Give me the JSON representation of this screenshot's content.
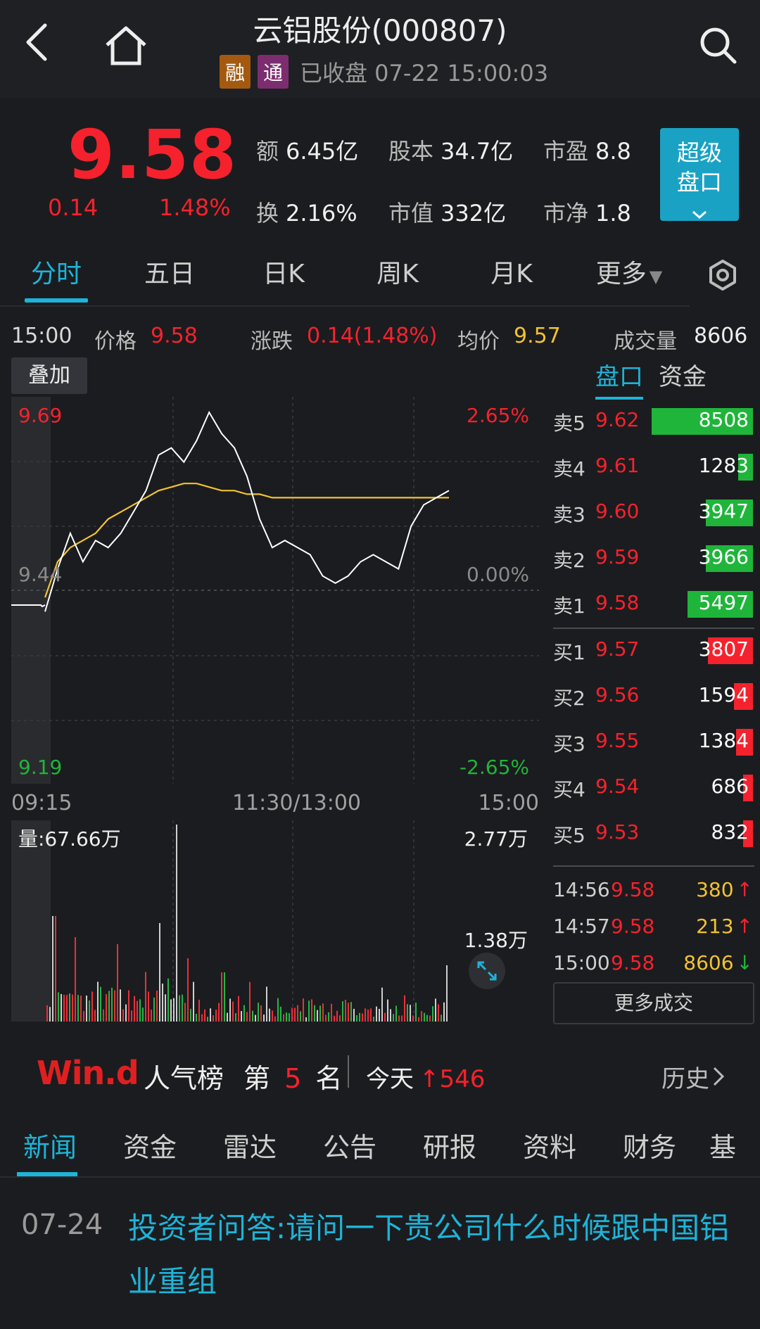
{
  "header": {
    "title": "云铝股份(000807)",
    "tag1": "融",
    "tag2": "通",
    "status": "已收盘 07-22 15:00:03"
  },
  "quote": {
    "price": "9.58",
    "change": "0.14",
    "change_pct": "1.48%",
    "stats": [
      {
        "k": "额",
        "v": "6.45亿"
      },
      {
        "k": "股本",
        "v": "34.7亿"
      },
      {
        "k": "市盈",
        "v": "8.8"
      },
      {
        "k": "换",
        "v": "2.16%"
      },
      {
        "k": "市值",
        "v": "332亿"
      },
      {
        "k": "市净",
        "v": "1.8"
      }
    ],
    "super_button": [
      "超级",
      "盘口"
    ]
  },
  "chart_tabs": [
    "分时",
    "五日",
    "日K",
    "周K",
    "月K",
    "更多"
  ],
  "info_line": {
    "time": "15:00",
    "price_label": "价格",
    "price": "9.58",
    "change_label": "涨跌",
    "change": "0.14(1.48%)",
    "avg_label": "均价",
    "avg": "9.57",
    "volume_label": "成交量",
    "volume": "8606"
  },
  "overlay_button": "叠加",
  "order_tabs": [
    "盘口",
    "资金"
  ],
  "price_chart": {
    "y_max": "9.69",
    "y_mid": "9.44",
    "y_min": "9.19",
    "pct_max": "2.65%",
    "pct_mid": "0.00%",
    "pct_min": "-2.65%",
    "x_labels": [
      "09:15",
      "11:30/13:00",
      "15:00"
    ]
  },
  "volume_chart": {
    "label": "量:67.66万",
    "max": "2.77万",
    "mid": "1.38万"
  },
  "chart_data": {
    "type": "line",
    "ylim": [
      9.19,
      9.69
    ],
    "series": [
      {
        "name": "价格",
        "values": [
          9.41,
          9.47,
          9.52,
          9.48,
          9.51,
          9.5,
          9.52,
          9.55,
          9.58,
          9.63,
          9.64,
          9.62,
          9.65,
          9.69,
          9.66,
          9.64,
          9.6,
          9.54,
          9.5,
          9.51,
          9.5,
          9.49,
          9.46,
          9.45,
          9.46,
          9.48,
          9.49,
          9.48,
          9.47,
          9.53,
          9.56,
          9.57,
          9.58
        ]
      },
      {
        "name": "均价",
        "values": [
          9.43,
          9.48,
          9.5,
          9.51,
          9.52,
          9.54,
          9.55,
          9.56,
          9.57,
          9.58,
          9.585,
          9.59,
          9.59,
          9.585,
          9.58,
          9.58,
          9.575,
          9.575,
          9.57,
          9.57,
          9.57,
          9.57,
          9.57,
          9.57,
          9.57,
          9.57,
          9.57,
          9.57,
          9.57,
          9.57,
          9.57,
          9.57,
          9.57
        ]
      }
    ]
  },
  "order_book": {
    "asks": [
      {
        "label": "卖5",
        "price": "9.62",
        "vol": "8508",
        "ratio": 0.9
      },
      {
        "label": "卖4",
        "price": "9.61",
        "vol": "1283",
        "ratio": 0.13
      },
      {
        "label": "卖3",
        "price": "9.60",
        "vol": "3947",
        "ratio": 0.42
      },
      {
        "label": "卖2",
        "price": "9.59",
        "vol": "3966",
        "ratio": 0.42
      },
      {
        "label": "卖1",
        "price": "9.58",
        "vol": "5497",
        "ratio": 0.58
      }
    ],
    "bids": [
      {
        "label": "买1",
        "price": "9.57",
        "vol": "3807",
        "ratio": 0.4
      },
      {
        "label": "买2",
        "price": "9.56",
        "vol": "1594",
        "ratio": 0.17
      },
      {
        "label": "买3",
        "price": "9.55",
        "vol": "1384",
        "ratio": 0.15
      },
      {
        "label": "买4",
        "price": "9.54",
        "vol": "686",
        "ratio": 0.07
      },
      {
        "label": "买5",
        "price": "9.53",
        "vol": "832",
        "ratio": 0.09
      }
    ],
    "trades": [
      {
        "time": "14:56",
        "price": "9.58",
        "vol": "380",
        "arrow": "↑",
        "dir": "up"
      },
      {
        "time": "14:57",
        "price": "9.58",
        "vol": "213",
        "arrow": "↑",
        "dir": "up"
      },
      {
        "time": "15:00",
        "price": "9.58",
        "vol": "8606",
        "arrow": "↓",
        "dir": "down"
      }
    ],
    "more_trades": "更多成交",
    "ask_color": "#1fb53a",
    "bid_color": "#f5222d"
  },
  "wind": {
    "logo": "Win.d",
    "title": "人气榜",
    "rank_pre": "第",
    "rank": "5",
    "rank_post": "名",
    "today_label": "今天",
    "today_arrow": "↑",
    "today_value": "546",
    "history": "历史"
  },
  "news_tabs": [
    "新闻",
    "资金",
    "雷达",
    "公告",
    "研报",
    "资料",
    "财务",
    "基金"
  ],
  "news": {
    "date": "07-24",
    "title": "投资者问答:请问一下贵公司什么时候跟中国铝业重组"
  },
  "colors": {
    "accent": "#1db4d9",
    "up": "#f5222d",
    "down": "#1fb53a",
    "avg_line": "#f2c230"
  }
}
